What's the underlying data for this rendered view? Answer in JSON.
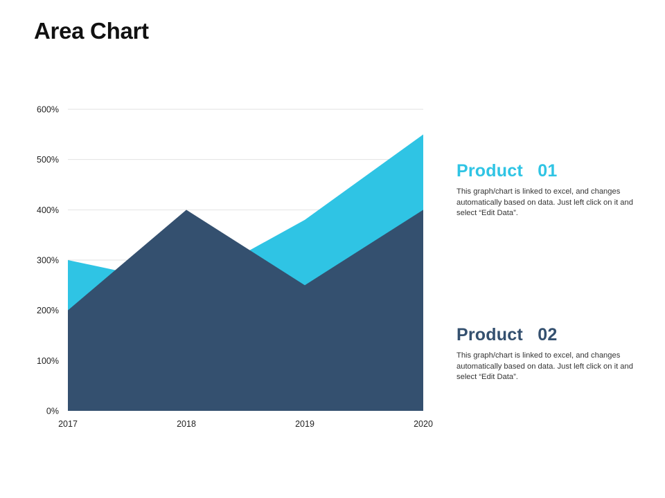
{
  "page": {
    "title": "Area Chart"
  },
  "colors": {
    "product_01": "#2fc4e4",
    "product_02": "#34506f",
    "grid": "#e2e2e2"
  },
  "legend": [
    {
      "title": "Product   01",
      "description": "This graph/chart is linked to excel, and changes automatically based on data. Just left click on it and select “Edit Data”."
    },
    {
      "title": "Product   02",
      "description": "This graph/chart is linked to excel, and changes automatically based on data. Just left click on it and select “Edit Data”."
    }
  ],
  "chart_data": {
    "type": "area",
    "categories": [
      "2017",
      "2018",
      "2019",
      "2020"
    ],
    "series": [
      {
        "name": "Product   01",
        "values": [
          300,
          250,
          380,
          550
        ]
      },
      {
        "name": "Product   02",
        "values": [
          200,
          400,
          250,
          400
        ]
      }
    ],
    "ylim": [
      0,
      600
    ],
    "yticks": [
      0,
      100,
      200,
      300,
      400,
      500,
      600
    ],
    "ytick_labels": [
      "0%",
      "100%",
      "200%",
      "300%",
      "400%",
      "500%",
      "600%"
    ],
    "grid": true,
    "legend_position": "right"
  }
}
